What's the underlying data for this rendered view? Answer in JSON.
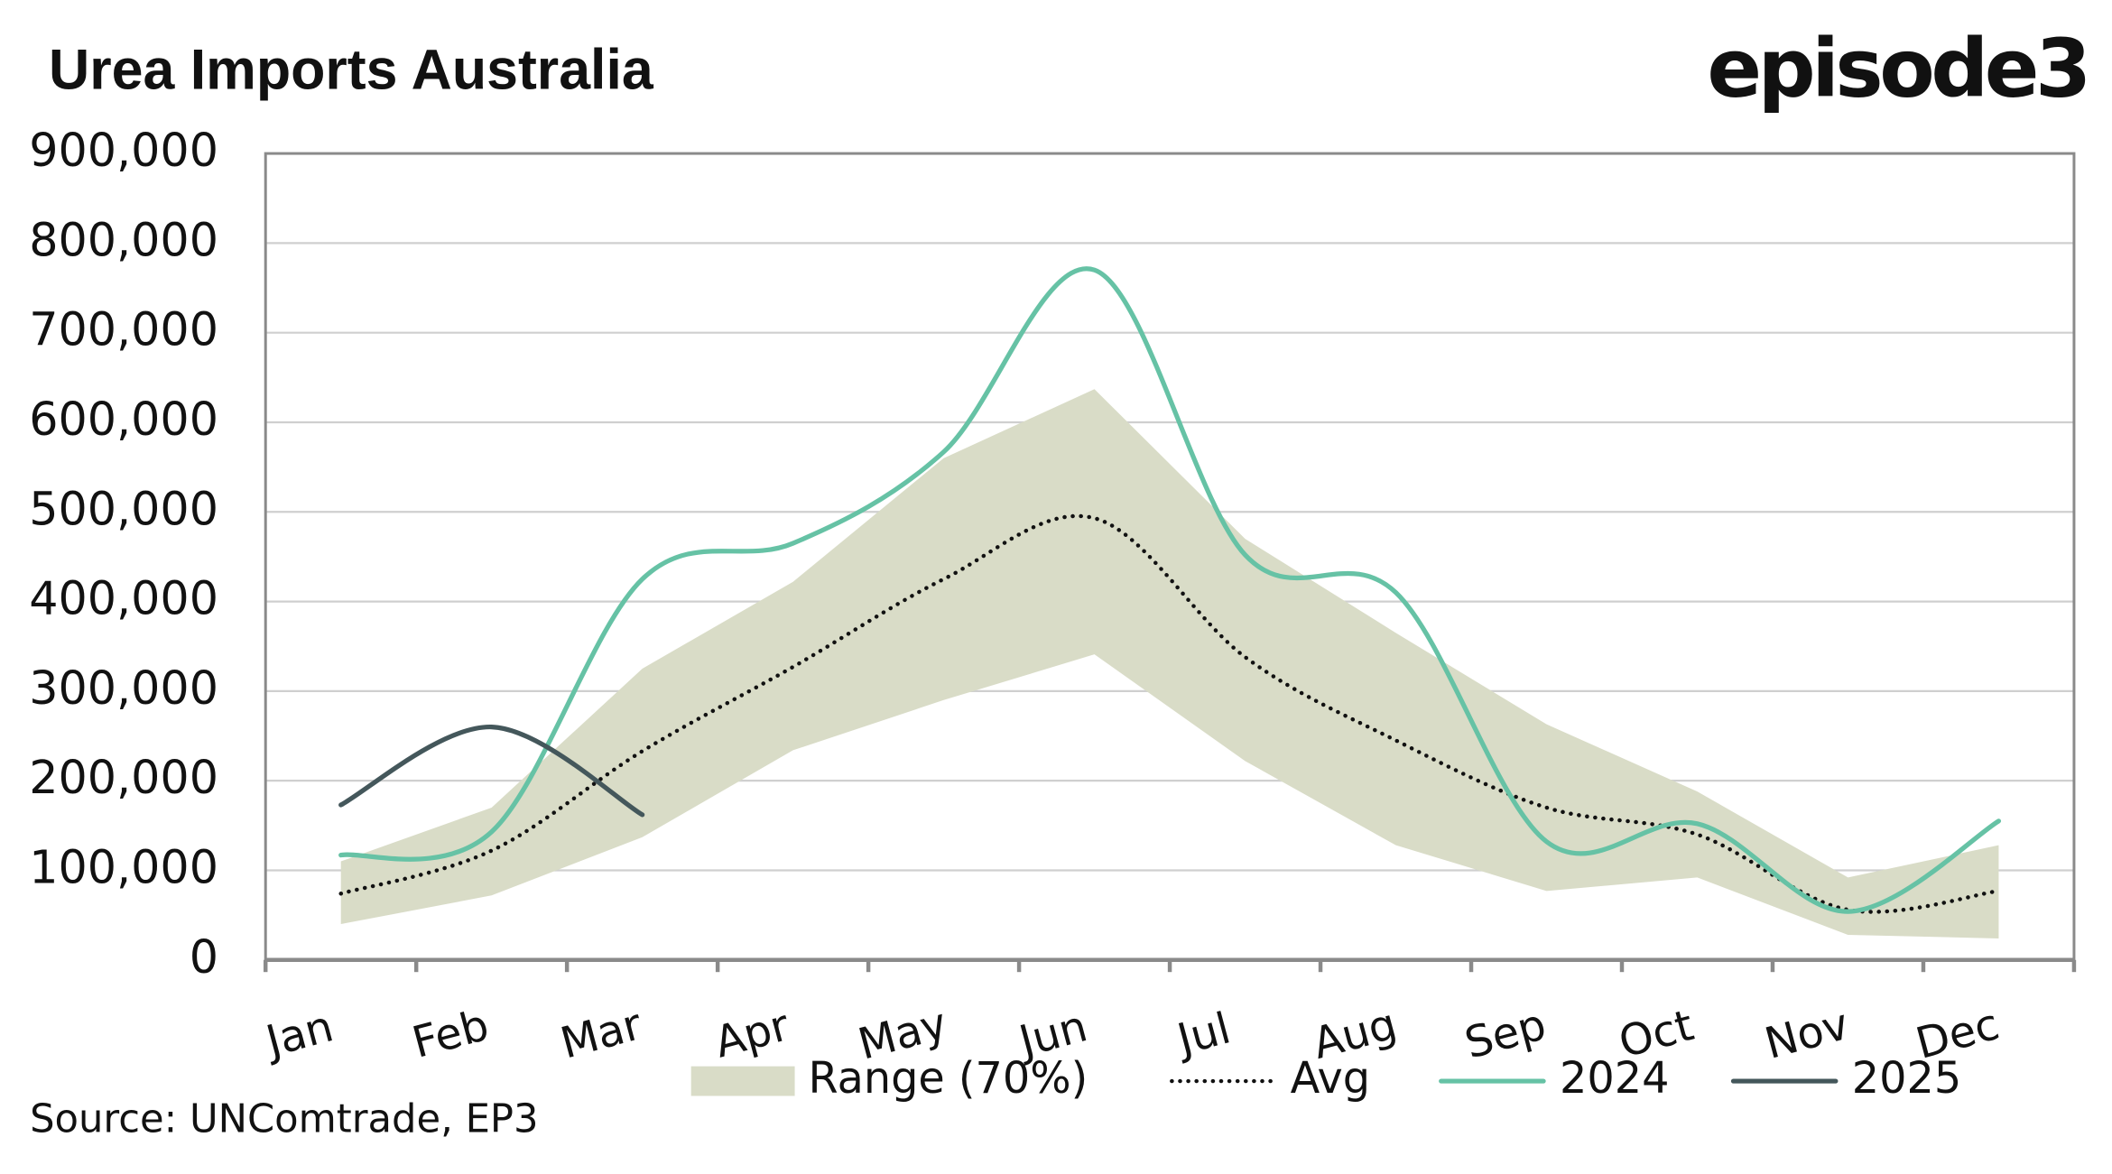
{
  "chart_data": {
    "type": "line",
    "title": "Urea Imports Australia",
    "brand": "episode3",
    "source": "Source: UNComtrade, EP3",
    "categories": [
      "Jan",
      "Feb",
      "Mar",
      "Apr",
      "May",
      "Jun",
      "Jul",
      "Aug",
      "Sep",
      "Oct",
      "Nov",
      "Dec"
    ],
    "band": {
      "name": "Range (70%)",
      "color": "#d9dcc7",
      "low": [
        40000,
        72000,
        137000,
        234000,
        290000,
        341000,
        222000,
        128000,
        77000,
        92000,
        28000,
        24000
      ],
      "high": [
        110000,
        170000,
        325000,
        422000,
        560000,
        637000,
        470000,
        365000,
        263000,
        188000,
        92000,
        128000
      ]
    },
    "series": [
      {
        "name": "Avg",
        "color": "#111111",
        "dash": "dotted",
        "values": [
          74000,
          122000,
          233000,
          327000,
          425000,
          493000,
          338000,
          245000,
          170000,
          140000,
          56000,
          77000
        ]
      },
      {
        "name": "2024",
        "color": "#66c2a5",
        "values": [
          117000,
          143000,
          425000,
          465000,
          567000,
          770000,
          452000,
          410000,
          132000,
          152000,
          54000,
          155000
        ]
      },
      {
        "name": "2025",
        "color": "#44575b",
        "values": [
          173000,
          260000,
          162000,
          null,
          null,
          null,
          null,
          null,
          null,
          null,
          null,
          null
        ]
      }
    ],
    "ylim": [
      0,
      900000
    ],
    "yticks": [
      0,
      {
        "value": 100000,
        "label": "100,000"
      },
      {
        "value": 200000,
        "label": "200,000"
      },
      {
        "value": 300000,
        "label": "300,000"
      },
      {
        "value": 400000,
        "label": "400,000"
      },
      {
        "value": 500000,
        "label": "500,000"
      },
      {
        "value": 600000,
        "label": "600,000"
      },
      {
        "value": 700000,
        "label": "700,000"
      },
      {
        "value": 800000,
        "label": "800,000"
      },
      {
        "value": 900000,
        "label": "900,000"
      }
    ],
    "grid": true,
    "legend": "bottom"
  }
}
